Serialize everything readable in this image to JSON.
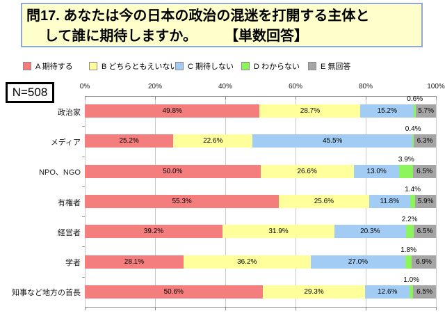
{
  "title": {
    "line1": "問17. あなたは今の日本の政治の混迷を打開する主体と",
    "line2": "して誰に期待しますか。",
    "answer_type_tag": "【単数回答】"
  },
  "sample_size_label": "N=508",
  "chart_data": {
    "type": "bar",
    "stacked": true,
    "orientation": "horizontal",
    "title": "問17. あなたは今の日本の政治の混迷を打開する主体として誰に期待しますか。【単数回答】",
    "sample_size": 508,
    "xlim": [
      0,
      100
    ],
    "axis_ticks": [
      "0%",
      "20%",
      "40%",
      "60%",
      "80%",
      "100%"
    ],
    "grid": true,
    "legend_position": "top",
    "categories": [
      "政治家",
      "メディア",
      "NPO、NGO",
      "有権者",
      "経営者",
      "学者",
      "知事など地方の首長"
    ],
    "series": [
      {
        "name": "A 期待する",
        "color": "#F47E7E",
        "label_position": "inside",
        "values": [
          49.8,
          25.2,
          50.0,
          55.3,
          39.2,
          28.1,
          50.6
        ]
      },
      {
        "name": "B どちらともえいない",
        "color": "#FFFF9B",
        "label_position": "inside",
        "values": [
          28.7,
          22.6,
          26.6,
          25.6,
          31.9,
          36.2,
          29.3
        ]
      },
      {
        "name": "C 期待しない",
        "color": "#A2CCF4",
        "label_position": "inside",
        "values": [
          15.2,
          45.5,
          13.0,
          11.8,
          20.3,
          27.0,
          12.6
        ]
      },
      {
        "name": "D わからない",
        "color": "#8CF55C",
        "label_position": "above",
        "values": [
          0.6,
          0.4,
          3.9,
          1.4,
          2.2,
          1.8,
          1.0
        ]
      },
      {
        "name": "E 無回答",
        "color": "#A5A5A5",
        "label_position": "inside",
        "values": [
          5.7,
          6.3,
          6.5,
          5.9,
          6.5,
          6.9,
          6.5
        ]
      }
    ],
    "colors": {
      "title_box_bg": "#FFFFCC",
      "title_box_border": "#92A8D2",
      "gridline": "#C9C9C9",
      "axis": "#8F8F8F"
    }
  },
  "legend_layout": {
    "lefts": [
      33,
      128,
      252,
      347,
      443
    ]
  }
}
